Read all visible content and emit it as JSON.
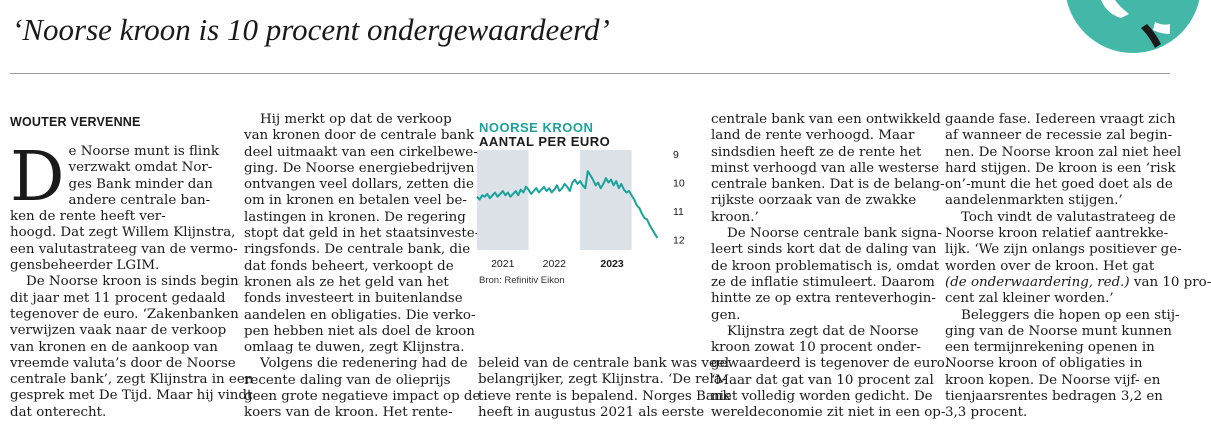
{
  "article": {
    "headline": "‘Noorse kroon is 10 procent ondergewaardeerd’",
    "byline": "WOUTER VERVENNE",
    "dropcap": "D",
    "col1_lines": [
      "e Noorse munt is flink",
      "verzwakt omdat Nor-",
      "ges Bank minder dan",
      "andere centrale ban-",
      "ken de rente heeft ver-",
      "hoogd. Dat zegt Willem Klijnstra,",
      "een valutastrateeg van de vermo-",
      "gensbeheerder LGIM.",
      "De Noorse kroon is sinds begin",
      "dit jaar met 11 procent gedaald",
      "tegenover de euro. ‘Zakenbanken",
      "verwijzen vaak naar de verkoop",
      "van kronen en de aankoop van",
      "vreemde valuta’s door de Noorse",
      "centrale bank’, zegt Klijnstra in een",
      "gesprek met De Tijd. Maar hij vindt",
      "dat onterecht."
    ],
    "col2_lines": [
      "Hij merkt op dat de verkoop",
      "van kronen door de centrale bank",
      "deel uitmaakt van een cirkelbewe-",
      "ging. De Noorse energiebedrijven",
      "ontvangen veel dollars, zetten die",
      "om in kronen en betalen veel be-",
      "lastingen in kronen. De regering",
      "stopt dat geld in het staatsinveste-",
      "ringsfonds. De centrale bank, die",
      "dat fonds beheert, verkoopt de",
      "kronen als ze het geld van het",
      "fonds investeert in buitenlandse",
      "aandelen en obligaties. Die verko-",
      "pen hebben niet als doel de kroon",
      "omlaag te duwen, zegt Klijnstra.",
      "Volgens die redenering had de",
      "recente daling van de olieprijs",
      "geen grote negatieve impact op de",
      "koers van de kroon. Het rente-"
    ],
    "col3_lines": [
      "beleid van de centrale bank was veel",
      "belangrijker, zegt Klijnstra. ‘De rela-",
      "tieve rente is bepalend. Norges Bank",
      "heeft in augustus 2021 als eerste"
    ],
    "col4_lines": [
      "centrale bank van een ontwikkeld",
      "land de rente verhoogd. Maar",
      "sindsdien heeft ze de rente het",
      "minst verhoogd van alle westerse",
      "centrale banken. Dat is de belang-",
      "rijkste oorzaak van de zwakke",
      "kroon.’",
      "De Noorse centrale bank signa-",
      "leert sinds kort dat de daling van",
      "de kroon problematisch is, omdat",
      "ze de inflatie stimuleert. Daarom",
      "hintte ze op extra renteverhogin-",
      "gen.",
      "Klijnstra zegt dat de Noorse",
      "kroon zowat 10 procent onder-",
      "gewaardeerd is tegenover de euro.",
      "‘Maar dat gat van 10 procent zal",
      "niet volledig worden gedicht. De",
      "wereldeconomie zit niet in een op-"
    ],
    "col5_lines": [
      "gaande fase. Iedereen vraagt zich",
      "af wanneer de recessie zal begin-",
      "nen. De Noorse kroon zal niet heel",
      "hard stijgen. De kroon is een ‘risk",
      "on’-munt die het goed doet als de",
      "aandelenmarkten stijgen.’",
      "Toch vindt de valutastrateeg de",
      "Noorse kroon relatief aantrekke-",
      "lijk. ‘We zijn onlangs positiever ge-",
      "worden over de kroon. Het gat ",
      "(de onderwaardering, red.)",
      " van 10 pro-",
      "cent zal kleiner worden.’",
      "Beleggers die hopen op een stij-",
      "ging van de Noorse munt kunnen",
      "een termijnrekening openen in",
      "Noorse kroon of obligaties in",
      "kroon kopen. De Noorse vijf- en",
      "tienjaarsrentes bedragen 3,2 en",
      "3,3 procent."
    ]
  },
  "chart": {
    "title": "NOORSE KROON",
    "subtitle": "AANTAL PER EURO",
    "source": "Bron: Refinitiv Eikon",
    "line_color": "#1aa39b",
    "band_color": "#dde1e8"
  },
  "chart_data": {
    "type": "line",
    "title": "NOORSE KROON",
    "subtitle": "AANTAL PER EURO",
    "x_tick_labels": [
      "2021",
      "2022",
      "2023"
    ],
    "y_tick_labels": [
      "9",
      "10",
      "11",
      "12"
    ],
    "y_inverted": true,
    "ylim": [
      9,
      12.3
    ],
    "xlim": [
      2020.0,
      2023.55
    ],
    "grid": false,
    "shaded_periods": [
      [
        2020.0,
        2021.0
      ],
      [
        2022.0,
        2023.0
      ]
    ],
    "series": [
      {
        "x": [
          2020.0,
          2020.05,
          2020.1,
          2020.15,
          2020.2,
          2020.25,
          2020.3,
          2020.35,
          2020.4,
          2020.45,
          2020.5,
          2020.55,
          2020.6,
          2020.65,
          2020.7,
          2020.75,
          2020.8,
          2020.85,
          2020.9,
          2020.95,
          2021.0,
          2021.05,
          2021.1,
          2021.15,
          2021.2,
          2021.25,
          2021.3,
          2021.35,
          2021.4,
          2021.45,
          2021.5,
          2021.55,
          2021.6,
          2021.65,
          2021.7,
          2021.75,
          2021.8,
          2021.85,
          2021.9,
          2021.95,
          2022.0,
          2022.05,
          2022.1,
          2022.15,
          2022.2,
          2022.25,
          2022.3,
          2022.35,
          2022.4,
          2022.45,
          2022.5,
          2022.55,
          2022.6,
          2022.65,
          2022.7,
          2022.75,
          2022.8,
          2022.85,
          2022.9,
          2022.95,
          2023.0,
          2023.05,
          2023.1,
          2023.15,
          2023.2,
          2023.25,
          2023.3,
          2023.35,
          2023.4,
          2023.45,
          2023.5
        ],
        "values": [
          10.5,
          10.6,
          10.45,
          10.5,
          10.4,
          10.55,
          10.45,
          10.35,
          10.5,
          10.4,
          10.3,
          10.45,
          10.35,
          10.5,
          10.4,
          10.3,
          10.45,
          10.25,
          10.35,
          10.15,
          10.25,
          10.4,
          10.3,
          10.2,
          10.35,
          10.25,
          10.15,
          10.3,
          10.2,
          10.35,
          10.25,
          10.1,
          10.3,
          10.2,
          10.05,
          10.15,
          10.3,
          10.0,
          9.9,
          10.05,
          9.95,
          10.1,
          10.2,
          9.6,
          9.75,
          9.9,
          10.1,
          10.0,
          10.2,
          10.05,
          9.85,
          10.0,
          9.9,
          10.1,
          9.95,
          10.2,
          10.05,
          10.25,
          10.35,
          10.3,
          10.45,
          10.6,
          10.8,
          10.9,
          11.1,
          11.25,
          11.3,
          11.5,
          11.65,
          11.8,
          11.95
        ]
      }
    ]
  }
}
